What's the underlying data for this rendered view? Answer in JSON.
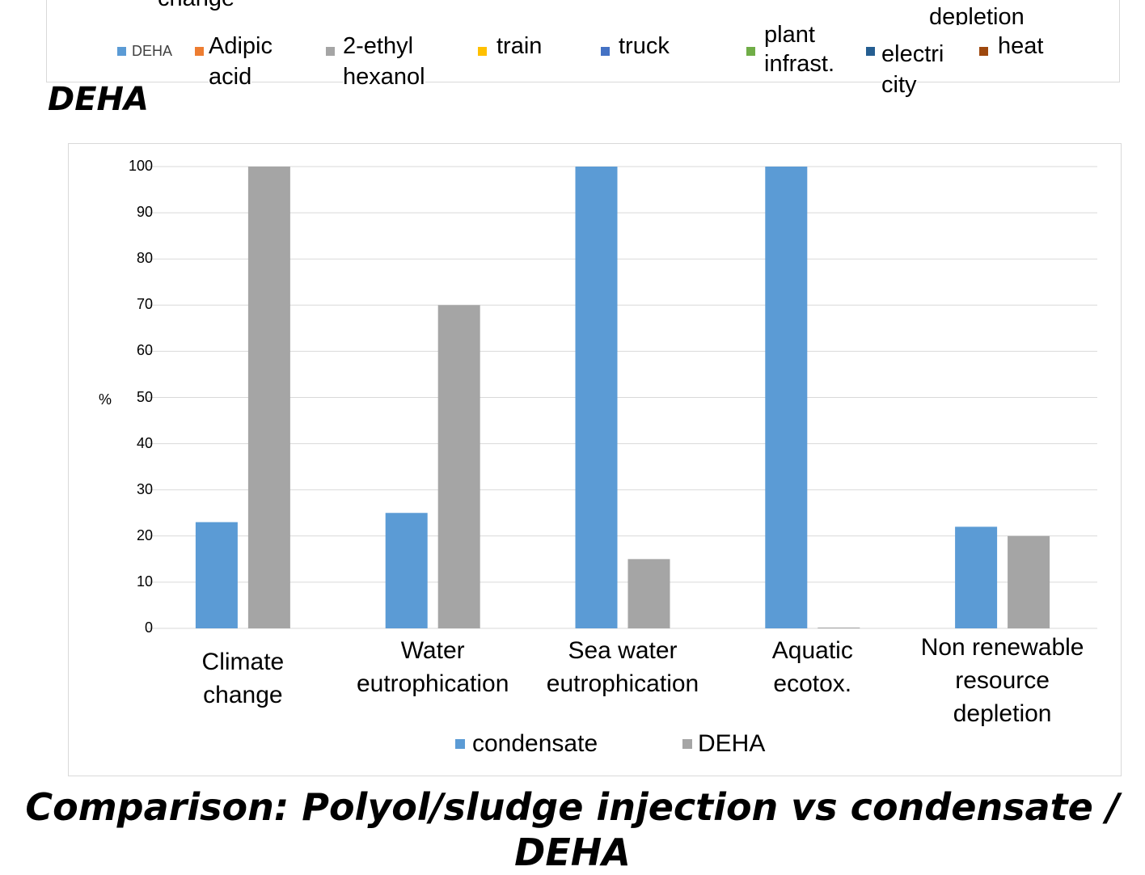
{
  "top_legend": {
    "cut_labels": [
      "change",
      "depletion"
    ],
    "items": [
      {
        "label": "DEHA",
        "color": "#5b9bd5"
      },
      {
        "label": "Adipic acid",
        "line1": "Adipic",
        "line2": "acid",
        "color": "#ed7d31"
      },
      {
        "label": "2-ethyl hexanol",
        "line1": "2-ethyl",
        "line2": "hexanol",
        "color": "#a5a5a5"
      },
      {
        "label": "train",
        "color": "#ffc000"
      },
      {
        "label": "truck",
        "color": "#4472c4"
      },
      {
        "label": "plant infrast.",
        "line1": "plant",
        "line2": "infrast.",
        "color": "#70ad47"
      },
      {
        "label": "electricity",
        "line1": "electri",
        "line2": "city",
        "color": "#255e91"
      },
      {
        "label": "heat",
        "color": "#9e480e"
      }
    ]
  },
  "section_title": "DEHA",
  "chart_data": {
    "type": "bar",
    "categories": [
      "Climate change",
      "Water eutrophication",
      "Sea water eutrophication",
      "Aquatic ecotox.",
      "Non renewable resource depletion"
    ],
    "category_lines": [
      [
        "Climate",
        "change"
      ],
      [
        "Water",
        "eutrophication"
      ],
      [
        "Sea water",
        "eutrophication"
      ],
      [
        "Aquatic",
        "ecotox."
      ],
      [
        "Non renewable",
        "resource",
        "depletion"
      ]
    ],
    "series": [
      {
        "name": "condensate",
        "values": [
          23,
          25,
          100,
          100,
          22
        ],
        "color": "#5b9bd5"
      },
      {
        "name": "DEHA",
        "values": [
          100,
          70,
          15,
          0,
          20
        ],
        "color": "#a5a5a5"
      }
    ],
    "ylabel": "%",
    "ylim": [
      0,
      100
    ],
    "yticks": [
      0,
      10,
      20,
      30,
      40,
      50,
      60,
      70,
      80,
      90,
      100
    ],
    "grid": true,
    "legend_position": "bottom"
  },
  "bottom_title": "Comparison: Polyol/sludge injection vs condensate / DEHA"
}
